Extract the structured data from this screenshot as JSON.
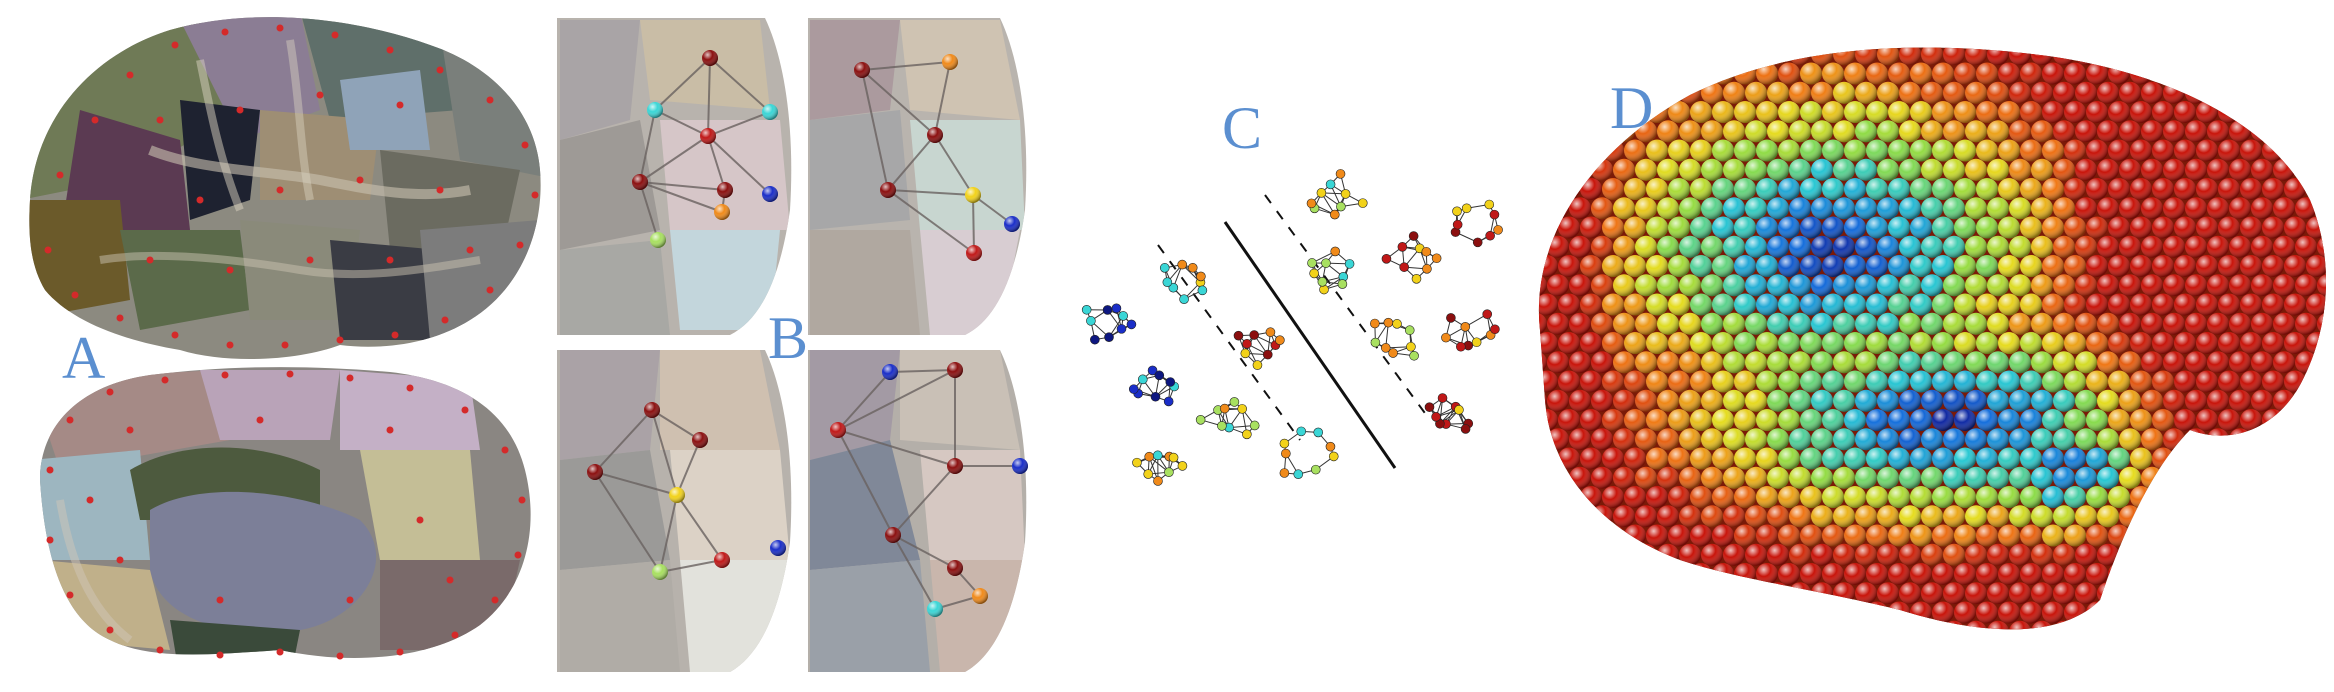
{
  "labels": {
    "a": "A",
    "b": "B",
    "c": "C",
    "d": "D"
  },
  "colors": {
    "label_blue": "#5b8fd0",
    "marker_red": "#d42a2a",
    "node_dark_red": "#8b0f0f",
    "node_red": "#c01818",
    "node_orange": "#f08a1a",
    "node_yellow": "#f2d21a",
    "node_light_green": "#a8e060",
    "node_cyan": "#3ad6d6",
    "node_blue": "#1a2ec8",
    "node_dark_blue": "#0d1780"
  },
  "icons": {
    "brain_lateral": "cortical-surface-parcellation-lateral",
    "brain_medial": "cortical-surface-parcellation-medial",
    "network_zoom": "parcel-graph-zoom",
    "graph_classification": "graph-classification-hyperplane",
    "brain_sphere_map": "cortical-node-sphere-heatmap"
  }
}
